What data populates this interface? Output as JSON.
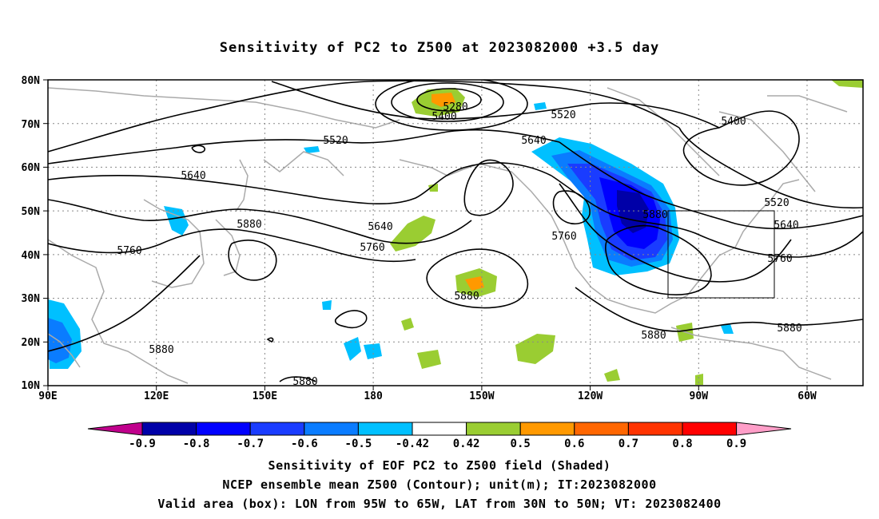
{
  "title": "Sensitivity of PC2 to Z500 at 2023082000 +3.5 day",
  "y_axis": {
    "labels": [
      "80N",
      "70N",
      "60N",
      "50N",
      "40N",
      "30N",
      "20N",
      "10N"
    ]
  },
  "x_axis": {
    "labels": [
      "90E",
      "120E",
      "150E",
      "180",
      "150W",
      "120W",
      "90W",
      "60W"
    ]
  },
  "contours": {
    "color": "#000000",
    "labels": [
      {
        "text": "5280"
      },
      {
        "text": "5400"
      },
      {
        "text": "5520"
      },
      {
        "text": "5520"
      },
      {
        "text": "5640"
      },
      {
        "text": "5400"
      },
      {
        "text": "5520"
      },
      {
        "text": "5640"
      },
      {
        "text": "5640"
      },
      {
        "text": "5640"
      },
      {
        "text": "5760"
      },
      {
        "text": "5760"
      },
      {
        "text": "5760"
      },
      {
        "text": "5760"
      },
      {
        "text": "5880"
      },
      {
        "text": "5880"
      },
      {
        "text": "5880"
      },
      {
        "text": "5880"
      },
      {
        "text": "5880"
      },
      {
        "text": "5880"
      },
      {
        "text": "5880"
      }
    ]
  },
  "colorbar": {
    "bins": [
      {
        "color": "#0000a8"
      },
      {
        "color": "#0000ff"
      },
      {
        "color": "#1a3cff"
      },
      {
        "color": "#0a7cff"
      },
      {
        "color": "#00c0ff"
      },
      {
        "color": "#ffffff"
      },
      {
        "color": "#9acd32"
      },
      {
        "color": "#ff9900"
      },
      {
        "color": "#ff6600"
      },
      {
        "color": "#ff3300"
      },
      {
        "color": "#ff0000"
      }
    ],
    "low_end_color": "#c0008c",
    "high_end_color": "#ff9ec8",
    "labels": [
      "-0.9",
      "-0.8",
      "-0.7",
      "-0.6",
      "-0.5",
      "-0.42",
      "0.42",
      "0.5",
      "0.6",
      "0.7",
      "0.8",
      "0.9"
    ]
  },
  "captions": {
    "line1": "Sensitivity of EOF PC2 to Z500 field (Shaded)",
    "line2": "NCEP ensemble mean Z500 (Contour); unit(m); IT:2023082000",
    "line3": "Valid area (box): LON from 95W to 65W, LAT from 30N to 50N; VT: 2023082400"
  },
  "valid_box": {
    "lon_from": "95W",
    "lon_to": "65W",
    "lat_from": "30N",
    "lat_to": "50N"
  },
  "colors": {
    "coast": "#aaaaaa",
    "grid": "#888888",
    "frame": "#000000"
  }
}
